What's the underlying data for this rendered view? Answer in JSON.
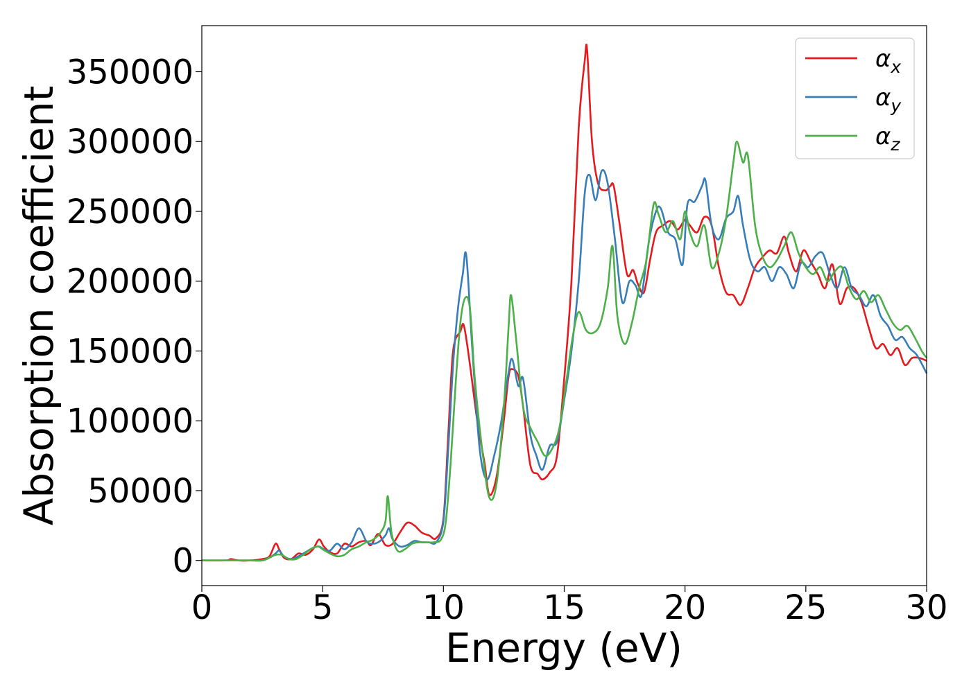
{
  "chart_data": {
    "type": "line",
    "title": "",
    "xlabel": "Energy (eV)",
    "ylabel": "Absorption coefficient",
    "xlim": [
      0,
      30
    ],
    "ylim": [
      -18000,
      383000
    ],
    "xticks": [
      "0",
      "5",
      "10",
      "15",
      "20",
      "25",
      "30"
    ],
    "yticks": [
      "0",
      "50000",
      "100000",
      "150000",
      "200000",
      "250000",
      "300000",
      "350000"
    ],
    "grid": false,
    "legend": "top-right",
    "series": [
      {
        "name": "αx",
        "base": "α",
        "sub": "x",
        "color": "#e41a1c",
        "x": [
          0,
          1,
          1.2,
          1.5,
          2,
          2.5,
          2.8,
          3.05,
          3.2,
          3.4,
          3.7,
          4,
          4.3,
          4.6,
          4.85,
          5.05,
          5.3,
          5.6,
          5.9,
          6.2,
          6.5,
          6.8,
          7.0,
          7.3,
          7.6,
          7.9,
          8.2,
          8.5,
          8.8,
          9.1,
          9.4,
          9.7,
          10.0,
          10.2,
          10.4,
          10.7,
          10.85,
          11.1,
          11.4,
          11.7,
          11.9,
          12.2,
          12.5,
          12.7,
          12.85,
          13.1,
          13.3,
          13.6,
          13.9,
          14.1,
          14.4,
          14.7,
          15.0,
          15.3,
          15.6,
          15.85,
          15.95,
          16.15,
          16.4,
          16.7,
          16.9,
          17.05,
          17.3,
          17.6,
          17.85,
          18.05,
          18.3,
          18.55,
          18.8,
          19.1,
          19.4,
          19.7,
          20.0,
          20.2,
          20.5,
          20.8,
          21.1,
          21.4,
          21.7,
          22.0,
          22.3,
          22.6,
          22.9,
          23.2,
          23.5,
          23.8,
          24.1,
          24.3,
          24.6,
          24.9,
          25.2,
          25.5,
          25.8,
          26.1,
          26.4,
          26.7,
          27.0,
          27.3,
          27.6,
          27.9,
          28.2,
          28.5,
          28.8,
          29.1,
          29.4,
          29.7,
          30
        ],
        "y": [
          0,
          0,
          1000,
          0,
          0,
          1000,
          3000,
          12000,
          8000,
          2000,
          1000,
          5000,
          4000,
          8000,
          15000,
          10000,
          6000,
          5000,
          12000,
          10000,
          13000,
          14000,
          11000,
          19000,
          11000,
          12000,
          20000,
          27000,
          25000,
          20000,
          18000,
          16000,
          30000,
          90000,
          150000,
          164000,
          168000,
          140000,
          100000,
          70000,
          47000,
          60000,
          100000,
          132000,
          137000,
          132000,
          110000,
          68000,
          62000,
          58000,
          63000,
          75000,
          130000,
          200000,
          310000,
          358000,
          365000,
          300000,
          270000,
          265000,
          268000,
          268000,
          240000,
          205000,
          208000,
          198000,
          192000,
          215000,
          235000,
          240000,
          243000,
          237000,
          244000,
          240000,
          235000,
          246000,
          240000,
          210000,
          192000,
          190000,
          183000,
          195000,
          210000,
          217000,
          222000,
          220000,
          232000,
          220000,
          207000,
          222000,
          214000,
          205000,
          195000,
          212000,
          184000,
          195000,
          195000,
          185000,
          167000,
          152000,
          155000,
          147000,
          152000,
          140000,
          145000,
          145000,
          143000
        ]
      },
      {
        "name": "αy",
        "base": "α",
        "sub": "y",
        "color": "#377eb8",
        "x": [
          0,
          1,
          1.5,
          2,
          2.5,
          2.8,
          3.05,
          3.2,
          3.4,
          3.7,
          4,
          4.3,
          4.6,
          4.85,
          5.05,
          5.3,
          5.6,
          5.9,
          6.2,
          6.5,
          6.8,
          7.0,
          7.3,
          7.6,
          7.75,
          7.9,
          8.2,
          8.5,
          8.8,
          9.1,
          9.4,
          9.7,
          10.0,
          10.2,
          10.4,
          10.6,
          10.8,
          10.95,
          11.2,
          11.5,
          11.8,
          12.1,
          12.4,
          12.7,
          12.85,
          13.1,
          13.3,
          13.6,
          13.85,
          14.1,
          14.4,
          14.7,
          15.0,
          15.3,
          15.6,
          15.85,
          16.05,
          16.3,
          16.55,
          16.8,
          17.1,
          17.4,
          17.7,
          17.95,
          18.2,
          18.5,
          18.8,
          19.0,
          19.3,
          19.6,
          19.9,
          20.1,
          20.4,
          20.7,
          20.85,
          21.1,
          21.4,
          21.7,
          22.0,
          22.2,
          22.4,
          22.7,
          23.0,
          23.3,
          23.6,
          23.9,
          24.2,
          24.5,
          24.8,
          25.1,
          25.4,
          25.7,
          26.0,
          26.3,
          26.6,
          26.9,
          27.2,
          27.5,
          27.8,
          28.1,
          28.4,
          28.7,
          29.0,
          29.3,
          29.6,
          30
        ],
        "y": [
          0,
          0,
          0,
          0,
          0,
          2000,
          5000,
          7000,
          3000,
          1000,
          3000,
          6000,
          9000,
          10000,
          8000,
          7000,
          12000,
          8000,
          13000,
          23000,
          14000,
          12000,
          13000,
          18000,
          23000,
          15000,
          10000,
          11000,
          14000,
          13000,
          13000,
          13000,
          28000,
          80000,
          140000,
          180000,
          205000,
          218000,
          150000,
          80000,
          58000,
          75000,
          100000,
          135000,
          144000,
          125000,
          130000,
          90000,
          75000,
          65000,
          82000,
          85000,
          115000,
          150000,
          200000,
          263000,
          276000,
          258000,
          279000,
          270000,
          230000,
          185000,
          200000,
          197000,
          190000,
          228000,
          250000,
          252000,
          235000,
          230000,
          212000,
          255000,
          257000,
          268000,
          272000,
          240000,
          230000,
          245000,
          250000,
          261000,
          240000,
          215000,
          207000,
          210000,
          200000,
          210000,
          205000,
          195000,
          213000,
          210000,
          218000,
          220000,
          205000,
          195000,
          210000,
          195000,
          190000,
          182000,
          190000,
          175000,
          168000,
          158000,
          160000,
          152000,
          147000,
          134000
        ]
      },
      {
        "name": "αz",
        "base": "α",
        "sub": "z",
        "color": "#4daf4a",
        "x": [
          0,
          1,
          1.5,
          2,
          2.5,
          2.8,
          3.05,
          3.3,
          3.6,
          3.9,
          4.2,
          4.5,
          4.8,
          5.0,
          5.3,
          5.6,
          5.9,
          6.2,
          6.5,
          6.8,
          7.1,
          7.4,
          7.6,
          7.7,
          7.85,
          8.1,
          8.4,
          8.7,
          9.0,
          9.3,
          9.6,
          9.9,
          10.1,
          10.3,
          10.5,
          10.7,
          10.9,
          11.1,
          11.3,
          11.6,
          11.9,
          12.2,
          12.5,
          12.7,
          12.8,
          13.0,
          13.3,
          13.6,
          13.9,
          14.2,
          14.5,
          14.8,
          15.1,
          15.35,
          15.6,
          15.9,
          16.2,
          16.5,
          16.8,
          17.0,
          17.2,
          17.5,
          17.8,
          18.1,
          18.4,
          18.7,
          18.9,
          19.2,
          19.5,
          19.8,
          20.0,
          20.2,
          20.5,
          20.8,
          21.1,
          21.4,
          21.7,
          22.0,
          22.15,
          22.4,
          22.6,
          22.9,
          23.2,
          23.5,
          23.8,
          24.1,
          24.4,
          24.7,
          25.0,
          25.3,
          25.6,
          25.9,
          26.2,
          26.5,
          26.8,
          27.1,
          27.4,
          27.7,
          28.0,
          28.3,
          28.6,
          28.9,
          29.2,
          29.5,
          29.8,
          30
        ],
        "y": [
          0,
          0,
          0,
          0,
          0,
          2000,
          4000,
          4000,
          1000,
          1000,
          4000,
          8000,
          10000,
          8000,
          5000,
          3000,
          4000,
          8000,
          10000,
          13000,
          15000,
          20000,
          28000,
          46000,
          20000,
          7000,
          8000,
          12000,
          13000,
          13000,
          13000,
          15000,
          28000,
          70000,
          125000,
          170000,
          188000,
          180000,
          130000,
          80000,
          45000,
          55000,
          110000,
          168000,
          190000,
          160000,
          110000,
          95000,
          85000,
          75000,
          80000,
          95000,
          130000,
          160000,
          178000,
          165000,
          163000,
          170000,
          195000,
          225000,
          175000,
          155000,
          170000,
          195000,
          215000,
          255000,
          248000,
          235000,
          243000,
          230000,
          250000,
          235000,
          225000,
          240000,
          210000,
          220000,
          245000,
          285000,
          300000,
          285000,
          290000,
          240000,
          218000,
          210000,
          215000,
          225000,
          235000,
          220000,
          210000,
          205000,
          210000,
          200000,
          207000,
          210000,
          195000,
          187000,
          193000,
          185000,
          190000,
          180000,
          170000,
          165000,
          168000,
          160000,
          150000,
          145000
        ]
      }
    ]
  }
}
